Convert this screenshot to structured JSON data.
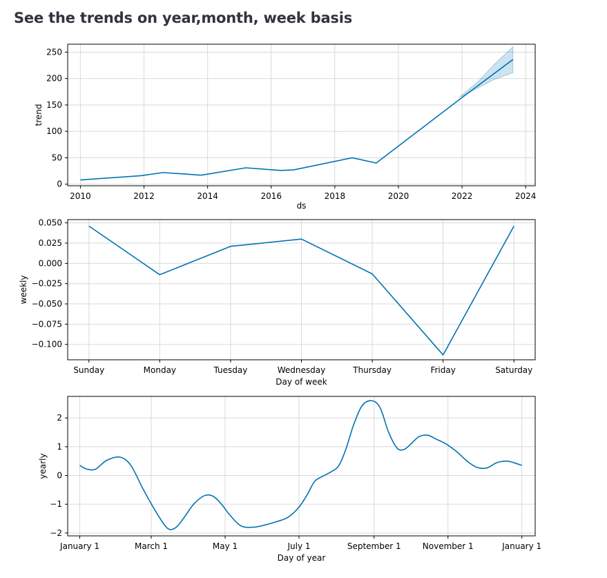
{
  "page": {
    "title": "See the trends on year,month, week basis"
  },
  "colors": {
    "line": "#0072b2",
    "band": "#0072b2",
    "grid": "#d9d9d9",
    "axis": "#000000"
  },
  "chart_data": [
    {
      "type": "line",
      "name": "trend",
      "xlabel": "ds",
      "ylabel": "trend",
      "x_type": "year",
      "xlim": [
        2009.6,
        2024.3
      ],
      "ylim": [
        -3,
        265
      ],
      "xticks": [
        2010,
        2012,
        2014,
        2016,
        2018,
        2020,
        2022,
        2024
      ],
      "xtick_labels": [
        "2010",
        "2012",
        "2014",
        "2016",
        "2018",
        "2020",
        "2022",
        "2024"
      ],
      "yticks": [
        0,
        50,
        100,
        150,
        200,
        250
      ],
      "ytick_labels": [
        "0",
        "50",
        "100",
        "150",
        "200",
        "250"
      ],
      "grid": true,
      "series": [
        {
          "x": [
            2010.0,
            2011.9,
            2012.6,
            2013.8,
            2015.2,
            2016.3,
            2016.7,
            2018.55,
            2019.3,
            2022.0,
            2023.6
          ],
          "y": [
            8,
            16,
            22,
            17,
            31,
            26,
            27,
            50,
            40,
            164,
            236
          ]
        }
      ],
      "uncertainty_band": {
        "x": [
          2021.9,
          2022.5,
          2023.0,
          2023.6
        ],
        "lower": [
          164,
          182,
          198,
          211
        ],
        "upper": [
          164,
          194,
          226,
          260
        ]
      }
    },
    {
      "type": "line",
      "name": "weekly",
      "xlabel": "Day of week",
      "ylabel": "weekly",
      "categories": [
        "Sunday",
        "Monday",
        "Tuesday",
        "Wednesday",
        "Thursday",
        "Friday",
        "Saturday"
      ],
      "ylim": [
        -0.119,
        0.054
      ],
      "yticks": [
        0.05,
        0.025,
        0.0,
        -0.025,
        -0.05,
        -0.075,
        -0.1
      ],
      "ytick_labels": [
        "0.050",
        "0.025",
        "0.000",
        "−0.025",
        "−0.050",
        "−0.075",
        "−0.100"
      ],
      "grid": true,
      "series": [
        {
          "values": [
            0.046,
            -0.014,
            0.021,
            0.03,
            -0.013,
            -0.113,
            0.046
          ]
        }
      ]
    },
    {
      "type": "line",
      "name": "yearly",
      "xlabel": "Day of year",
      "ylabel": "yearly",
      "x_type": "day_of_year",
      "xlim": [
        -10,
        376
      ],
      "ylim": [
        -2.1,
        2.75
      ],
      "xticks": [
        0,
        59,
        120,
        181,
        243,
        304,
        365
      ],
      "xtick_labels": [
        "January 1",
        "March 1",
        "May 1",
        "July 1",
        "September 1",
        "November 1",
        "January 1"
      ],
      "yticks": [
        2,
        1,
        0,
        -1,
        -2
      ],
      "ytick_labels": [
        "2",
        "1",
        "0",
        "−1",
        "−2"
      ],
      "grid": true,
      "series": [
        {
          "x": [
            0,
            6,
            13,
            22,
            33,
            42,
            52,
            62,
            72,
            79,
            86,
            94,
            103,
            110,
            117,
            124,
            133,
            143,
            153,
            163,
            172,
            181,
            188,
            194,
            201,
            208,
            214,
            220,
            226,
            233,
            241,
            248,
            255,
            262,
            268,
            274,
            280,
            287,
            294,
            303,
            312,
            320,
            328,
            336,
            344,
            352,
            358,
            365
          ],
          "y": [
            0.35,
            0.22,
            0.22,
            0.52,
            0.64,
            0.36,
            -0.45,
            -1.2,
            -1.82,
            -1.82,
            -1.47,
            -1.0,
            -0.7,
            -0.72,
            -1.0,
            -1.38,
            -1.75,
            -1.8,
            -1.72,
            -1.6,
            -1.45,
            -1.1,
            -0.65,
            -0.2,
            -0.02,
            0.14,
            0.35,
            0.95,
            1.75,
            2.42,
            2.6,
            2.35,
            1.5,
            0.95,
            0.91,
            1.12,
            1.35,
            1.4,
            1.27,
            1.08,
            0.8,
            0.49,
            0.28,
            0.26,
            0.44,
            0.5,
            0.45,
            0.35
          ]
        }
      ]
    }
  ]
}
